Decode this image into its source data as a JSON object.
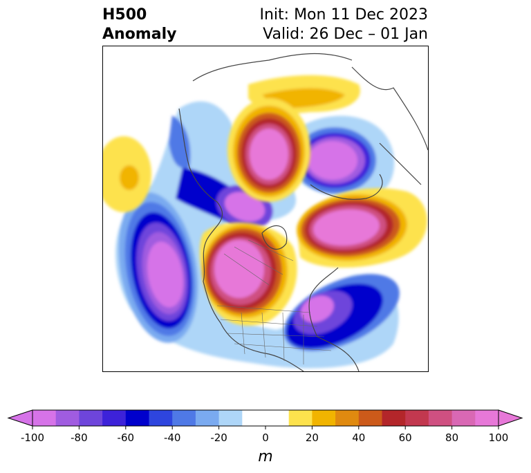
{
  "title": {
    "left_line1": "H500",
    "left_line2": "Anomaly",
    "init": "Init: Mon 11 Dec 2023",
    "valid": "Valid: 26 Dec – 01 Jan"
  },
  "colorbar": {
    "label": "m",
    "min": -100,
    "max": 100,
    "ticks": [
      "-100",
      "-80",
      "-60",
      "-40",
      "-20",
      "0",
      "20",
      "40",
      "60",
      "80",
      "100"
    ],
    "tick_values": [
      -100,
      -80,
      -60,
      -40,
      -20,
      0,
      20,
      40,
      60,
      80,
      100
    ],
    "bins": [
      {
        "from": -100,
        "to": -90,
        "color": "#d673e8"
      },
      {
        "from": -90,
        "to": -80,
        "color": "#a05ce0"
      },
      {
        "from": -80,
        "to": -70,
        "color": "#6e45db"
      },
      {
        "from": -70,
        "to": -60,
        "color": "#3d22d9"
      },
      {
        "from": -60,
        "to": -50,
        "color": "#0000cc"
      },
      {
        "from": -50,
        "to": -40,
        "color": "#2e45de"
      },
      {
        "from": -40,
        "to": -30,
        "color": "#4f79e6"
      },
      {
        "from": -30,
        "to": -20,
        "color": "#7aaaf0"
      },
      {
        "from": -20,
        "to": -10,
        "color": "#aed6f8"
      },
      {
        "from": -10,
        "to": 10,
        "color": "#ffffff"
      },
      {
        "from": 10,
        "to": 20,
        "color": "#fde24d"
      },
      {
        "from": 20,
        "to": 30,
        "color": "#f1b400"
      },
      {
        "from": 30,
        "to": 40,
        "color": "#e08a10"
      },
      {
        "from": 40,
        "to": 50,
        "color": "#cc5a1a"
      },
      {
        "from": 50,
        "to": 60,
        "color": "#b3262a"
      },
      {
        "from": 60,
        "to": 70,
        "color": "#c2384f"
      },
      {
        "from": 70,
        "to": 80,
        "color": "#cf5081"
      },
      {
        "from": 80,
        "to": 90,
        "color": "#d968b4"
      },
      {
        "from": 90,
        "to": 100,
        "color": "#e778d8"
      }
    ],
    "under_color": "#d673e8",
    "over_color": "#e778d8"
  },
  "map": {
    "projection": "north polar stereographic",
    "region": "North America / North Pacific / North Atlantic",
    "coastline_color": "#444444",
    "anomaly_centers": [
      {
        "name": "alaska-trough",
        "value": -100
      },
      {
        "name": "western-us-canada-ridge",
        "value": 100
      },
      {
        "name": "arctic-low",
        "value": -100
      },
      {
        "name": "greenland-ridge",
        "value": 100
      },
      {
        "name": "siberia-ridge",
        "value": 100
      },
      {
        "name": "north-atlantic-ridge",
        "value": 100
      },
      {
        "name": "atlantic-trough",
        "value": -100
      },
      {
        "name": "pacific-ridge",
        "value": 30
      }
    ]
  }
}
